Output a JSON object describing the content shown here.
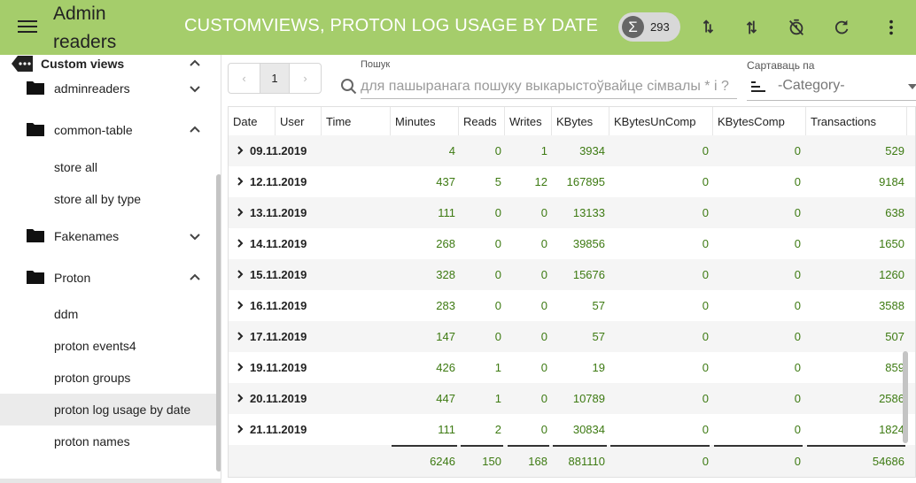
{
  "app": {
    "title": "Admin readers",
    "page_title": "CUSTOMVIEWS, PROTON LOG USAGE BY DATE",
    "count": "293"
  },
  "colors": {
    "topbar": "#a5cd6b",
    "value_text": "#3d7a12",
    "selected_row": "#ebebeb"
  },
  "sidebar": {
    "section": "Custom views",
    "items": [
      {
        "label": "adminreaders",
        "type": "folder",
        "expanded": false
      },
      {
        "label": "common-table",
        "type": "folder",
        "expanded": true
      },
      {
        "label": "store all",
        "type": "leaf"
      },
      {
        "label": "store all by type",
        "type": "leaf"
      },
      {
        "label": "Fakenames",
        "type": "folder",
        "expanded": false
      },
      {
        "label": "Proton",
        "type": "folder",
        "expanded": true
      },
      {
        "label": "ddm",
        "type": "leaf"
      },
      {
        "label": "proton events4",
        "type": "leaf"
      },
      {
        "label": "proton groups",
        "type": "leaf"
      },
      {
        "label": "proton log usage by date",
        "type": "leaf",
        "selected": true
      },
      {
        "label": "proton names",
        "type": "leaf"
      }
    ]
  },
  "pager": {
    "prev": "‹",
    "page": "1",
    "next": "›"
  },
  "search": {
    "label": "Пошук",
    "placeholder": "для пашыранага пошуку выкарыстоўвайце сімвалы * і ?"
  },
  "sort": {
    "label": "Сартаваць па",
    "value": "-Category-"
  },
  "table": {
    "columns": [
      "Date",
      "User",
      "Time",
      "Minutes",
      "Reads",
      "Writes",
      "KBytes",
      "KBytesUnComp",
      "KBytesComp",
      "Transactions"
    ],
    "rows": [
      {
        "date": "09.11.2019",
        "minutes": "4",
        "reads": "0",
        "writes": "1",
        "kbytes": "3934",
        "kbu": "0",
        "kbc": "0",
        "tx": "529"
      },
      {
        "date": "12.11.2019",
        "minutes": "437",
        "reads": "5",
        "writes": "12",
        "kbytes": "167895",
        "kbu": "0",
        "kbc": "0",
        "tx": "9184"
      },
      {
        "date": "13.11.2019",
        "minutes": "111",
        "reads": "0",
        "writes": "0",
        "kbytes": "13133",
        "kbu": "0",
        "kbc": "0",
        "tx": "638"
      },
      {
        "date": "14.11.2019",
        "minutes": "268",
        "reads": "0",
        "writes": "0",
        "kbytes": "39856",
        "kbu": "0",
        "kbc": "0",
        "tx": "1650"
      },
      {
        "date": "15.11.2019",
        "minutes": "328",
        "reads": "0",
        "writes": "0",
        "kbytes": "15676",
        "kbu": "0",
        "kbc": "0",
        "tx": "1260"
      },
      {
        "date": "16.11.2019",
        "minutes": "283",
        "reads": "0",
        "writes": "0",
        "kbytes": "57",
        "kbu": "0",
        "kbc": "0",
        "tx": "3588"
      },
      {
        "date": "17.11.2019",
        "minutes": "147",
        "reads": "0",
        "writes": "0",
        "kbytes": "57",
        "kbu": "0",
        "kbc": "0",
        "tx": "507"
      },
      {
        "date": "19.11.2019",
        "minutes": "426",
        "reads": "1",
        "writes": "0",
        "kbytes": "19",
        "kbu": "0",
        "kbc": "0",
        "tx": "859"
      },
      {
        "date": "20.11.2019",
        "minutes": "447",
        "reads": "1",
        "writes": "0",
        "kbytes": "10789",
        "kbu": "0",
        "kbc": "0",
        "tx": "2586"
      },
      {
        "date": "21.11.2019",
        "minutes": "111",
        "reads": "2",
        "writes": "0",
        "kbytes": "30834",
        "kbu": "0",
        "kbc": "0",
        "tx": "1824"
      }
    ],
    "totals": {
      "minutes": "6246",
      "reads": "150",
      "writes": "168",
      "kbytes": "881110",
      "kbu": "0",
      "kbc": "0",
      "tx": "54686"
    }
  }
}
